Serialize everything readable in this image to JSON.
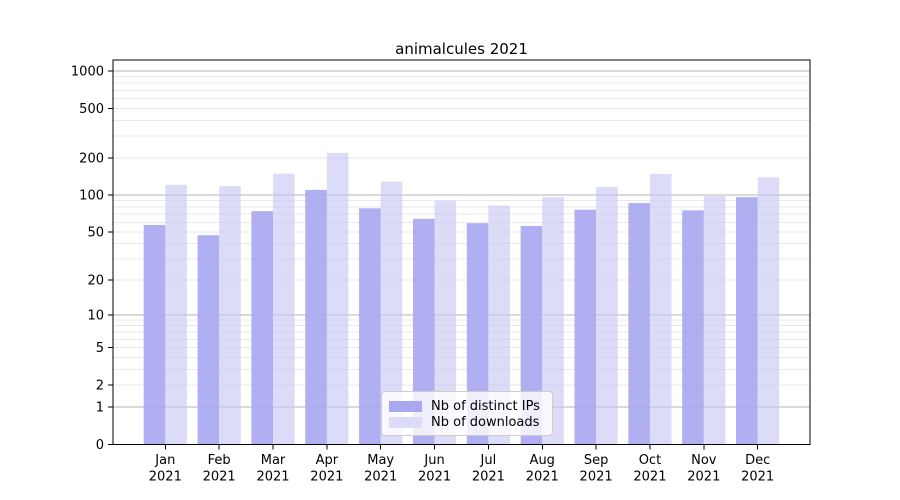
{
  "title": "animalcules 2021",
  "colors": {
    "ips_bar": "#a8a8f0",
    "downloads_bar": "#c9c9f4",
    "downloads_bar_displayed": "#dcdcf8",
    "grid_major": "#b3b3b3",
    "grid_minor": "#e9e9e9",
    "axis": "#000000",
    "legend_border": "#cccccc"
  },
  "chart_data": {
    "type": "bar",
    "title": "animalcules 2021",
    "categories": [
      "Jan\n2021",
      "Feb\n2021",
      "Mar\n2021",
      "Apr\n2021",
      "May\n2021",
      "Jun\n2021",
      "Jul\n2021",
      "Aug\n2021",
      "Sep\n2021",
      "Oct\n2021",
      "Nov\n2021",
      "Dec\n2021"
    ],
    "series": [
      {
        "name": "Nb of distinct IPs",
        "values": [
          57,
          47,
          74,
          110,
          78,
          64,
          59,
          56,
          76,
          86,
          75,
          96
        ]
      },
      {
        "name": "Nb of downloads",
        "values": [
          121,
          118,
          149,
          219,
          128,
          90,
          82,
          96,
          116,
          148,
          98,
          139
        ]
      }
    ],
    "xlabel": "",
    "ylabel": "",
    "yscale": "log1p",
    "yticks": [
      0,
      1,
      2,
      5,
      10,
      20,
      50,
      100,
      200,
      500,
      1000
    ],
    "ylim": [
      0,
      1000
    ],
    "grid": "log minor + major horizontal gridlines",
    "legend_position": "inside lower center"
  }
}
